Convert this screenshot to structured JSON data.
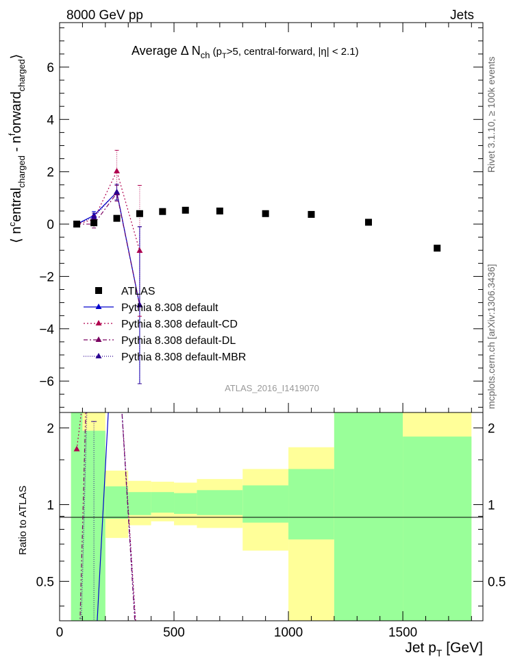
{
  "header": {
    "left": "8000 GeV pp",
    "right": "Jets"
  },
  "title": {
    "main": "Average Δ N",
    "main_sub": "ch",
    "cuts_a": " (p",
    "cuts_a_sub": "T",
    "cuts_b": ">5, central-forward, |η| < 2.1)"
  },
  "side_labels": {
    "rivet": "Rivet 3.1.10, ≥ 100k events",
    "mcplots": "mcplots.cern.ch [arXiv:1306.3436]"
  },
  "analysis_id": "ATLAS_2016_I1419070",
  "ylabel_main": {
    "p1": "⟨ n",
    "p2": "c",
    "p3": "entral",
    "p4": "charged",
    "p5": " - n",
    "p6": "f",
    "p7": "orward",
    "p8": "charged",
    "p9": "⟩"
  },
  "ylabel_ratio": "Ratio to ATLAS",
  "xlabel": {
    "main": "Jet p",
    "sub": "T",
    "unit": " [GeV]"
  },
  "chart_data": {
    "type": "scatter",
    "xlim": [
      0,
      1850
    ],
    "ylim_main": [
      -7.2,
      7.7
    ],
    "ylim_ratio": [
      0.35,
      2.3
    ],
    "x_ticks": [
      0,
      500,
      1000,
      1500
    ],
    "y_ticks_main": [
      -6,
      -4,
      -2,
      0,
      2,
      4,
      6
    ],
    "y_ticks_ratio": [
      0.5,
      1,
      2
    ],
    "legend_position": "bottom-left",
    "atlas": {
      "name": "ATLAS",
      "points": [
        {
          "x": 75,
          "y": 0.0
        },
        {
          "x": 150,
          "y": 0.05
        },
        {
          "x": 250,
          "y": 0.22
        },
        {
          "x": 350,
          "y": 0.4
        },
        {
          "x": 450,
          "y": 0.48
        },
        {
          "x": 550,
          "y": 0.53
        },
        {
          "x": 700,
          "y": 0.5
        },
        {
          "x": 900,
          "y": 0.4
        },
        {
          "x": 1100,
          "y": 0.37
        },
        {
          "x": 1350,
          "y": 0.07
        },
        {
          "x": 1650,
          "y": -0.92
        }
      ]
    },
    "ratio_bands": [
      {
        "x0": 50,
        "x1": 100,
        "y_lo": 0.35,
        "y_hi": 2.3,
        "g_lo": 0.35,
        "g_hi": 2.3
      },
      {
        "x0": 100,
        "x1": 200,
        "y_lo": 0.35,
        "y_hi": 2.3,
        "g_lo": 0.35,
        "g_hi": 1.95
      },
      {
        "x0": 200,
        "x1": 300,
        "y_lo": 0.74,
        "y_hi": 1.36,
        "g_lo": 0.88,
        "g_hi": 1.18
      },
      {
        "x0": 300,
        "x1": 400,
        "y_lo": 0.83,
        "y_hi": 1.24,
        "g_lo": 0.91,
        "g_hi": 1.12
      },
      {
        "x0": 400,
        "x1": 500,
        "y_lo": 0.86,
        "y_hi": 1.23,
        "g_lo": 0.93,
        "g_hi": 1.12
      },
      {
        "x0": 500,
        "x1": 600,
        "y_lo": 0.83,
        "y_hi": 1.22,
        "g_lo": 0.92,
        "g_hi": 1.11
      },
      {
        "x0": 600,
        "x1": 800,
        "y_lo": 0.81,
        "y_hi": 1.26,
        "g_lo": 0.91,
        "g_hi": 1.14
      },
      {
        "x0": 800,
        "x1": 1000,
        "y_lo": 0.66,
        "y_hi": 1.38,
        "g_lo": 0.85,
        "g_hi": 1.19
      },
      {
        "x0": 1000,
        "x1": 1200,
        "y_lo": 0.35,
        "y_hi": 1.68,
        "g_lo": 0.73,
        "g_hi": 1.38
      },
      {
        "x0": 1200,
        "x1": 1500,
        "y_lo": 0.35,
        "y_hi": 2.3,
        "g_lo": 0.35,
        "g_hi": 2.3
      },
      {
        "x0": 1500,
        "x1": 1800,
        "y_lo": 0.35,
        "y_hi": 2.3,
        "g_lo": 0.35,
        "g_hi": 1.85
      }
    ],
    "series": [
      {
        "name": "Pythia 8.308 default",
        "color": "#0000cc",
        "dash": "",
        "points": [
          {
            "x": 75,
            "y": 0.0
          },
          {
            "x": 150,
            "y": 0.33
          },
          {
            "x": 250,
            "y": 1.22
          },
          {
            "x": 350,
            "y": -3.1
          }
        ],
        "errors": [
          0.1,
          0.15,
          0.3,
          3.0
        ],
        "ratio": [
          {
            "x": 75,
            "y": 0.2
          },
          {
            "x": 150,
            "y": 0.2
          },
          {
            "x": 215,
            "y": 2.5
          }
        ]
      },
      {
        "name": "Pythia 8.308 default-CD",
        "color": "#b0004e",
        "dash": "2,3",
        "points": [
          {
            "x": 75,
            "y": 0.0
          },
          {
            "x": 150,
            "y": 0.18
          },
          {
            "x": 250,
            "y": 2.02
          },
          {
            "x": 350,
            "y": -1.02
          }
        ],
        "errors": [
          0.1,
          0.15,
          0.8,
          2.5
        ],
        "ratio": [
          {
            "x": 75,
            "y": 1.65
          },
          {
            "x": 100,
            "y": 2.5
          },
          {
            "x": 270,
            "y": 2.5
          },
          {
            "x": 350,
            "y": 0.2
          }
        ]
      },
      {
        "name": "Pythia 8.308 default-DL",
        "color": "#7a0060",
        "dash": "6,3,2,3",
        "points": [
          {
            "x": 75,
            "y": 0.0
          },
          {
            "x": 150,
            "y": 0.0
          },
          {
            "x": 250,
            "y": 1.18
          },
          {
            "x": 350,
            "y": -3.1
          }
        ],
        "errors": [
          0.1,
          0.15,
          0.3,
          3.0
        ],
        "ratio": [
          {
            "x": 82,
            "y": 0.2
          },
          {
            "x": 115,
            "y": 2.5
          },
          {
            "x": 270,
            "y": 2.5
          },
          {
            "x": 345,
            "y": 0.2
          }
        ]
      },
      {
        "name": "Pythia 8.308 default-MBR",
        "color": "#2a0090",
        "dash": "1,2",
        "points": [
          {
            "x": 75,
            "y": 0.0
          },
          {
            "x": 150,
            "y": 0.27
          },
          {
            "x": 250,
            "y": 1.22
          },
          {
            "x": 350,
            "y": -3.1
          }
        ],
        "errors": [
          0.1,
          0.15,
          0.3,
          3.0
        ],
        "ratio": [
          {
            "x": 88,
            "y": 0.2
          },
          {
            "x": 120,
            "y": 2.5
          },
          {
            "x": 270,
            "y": 2.5
          },
          {
            "x": 348,
            "y": 0.2
          }
        ]
      }
    ]
  }
}
